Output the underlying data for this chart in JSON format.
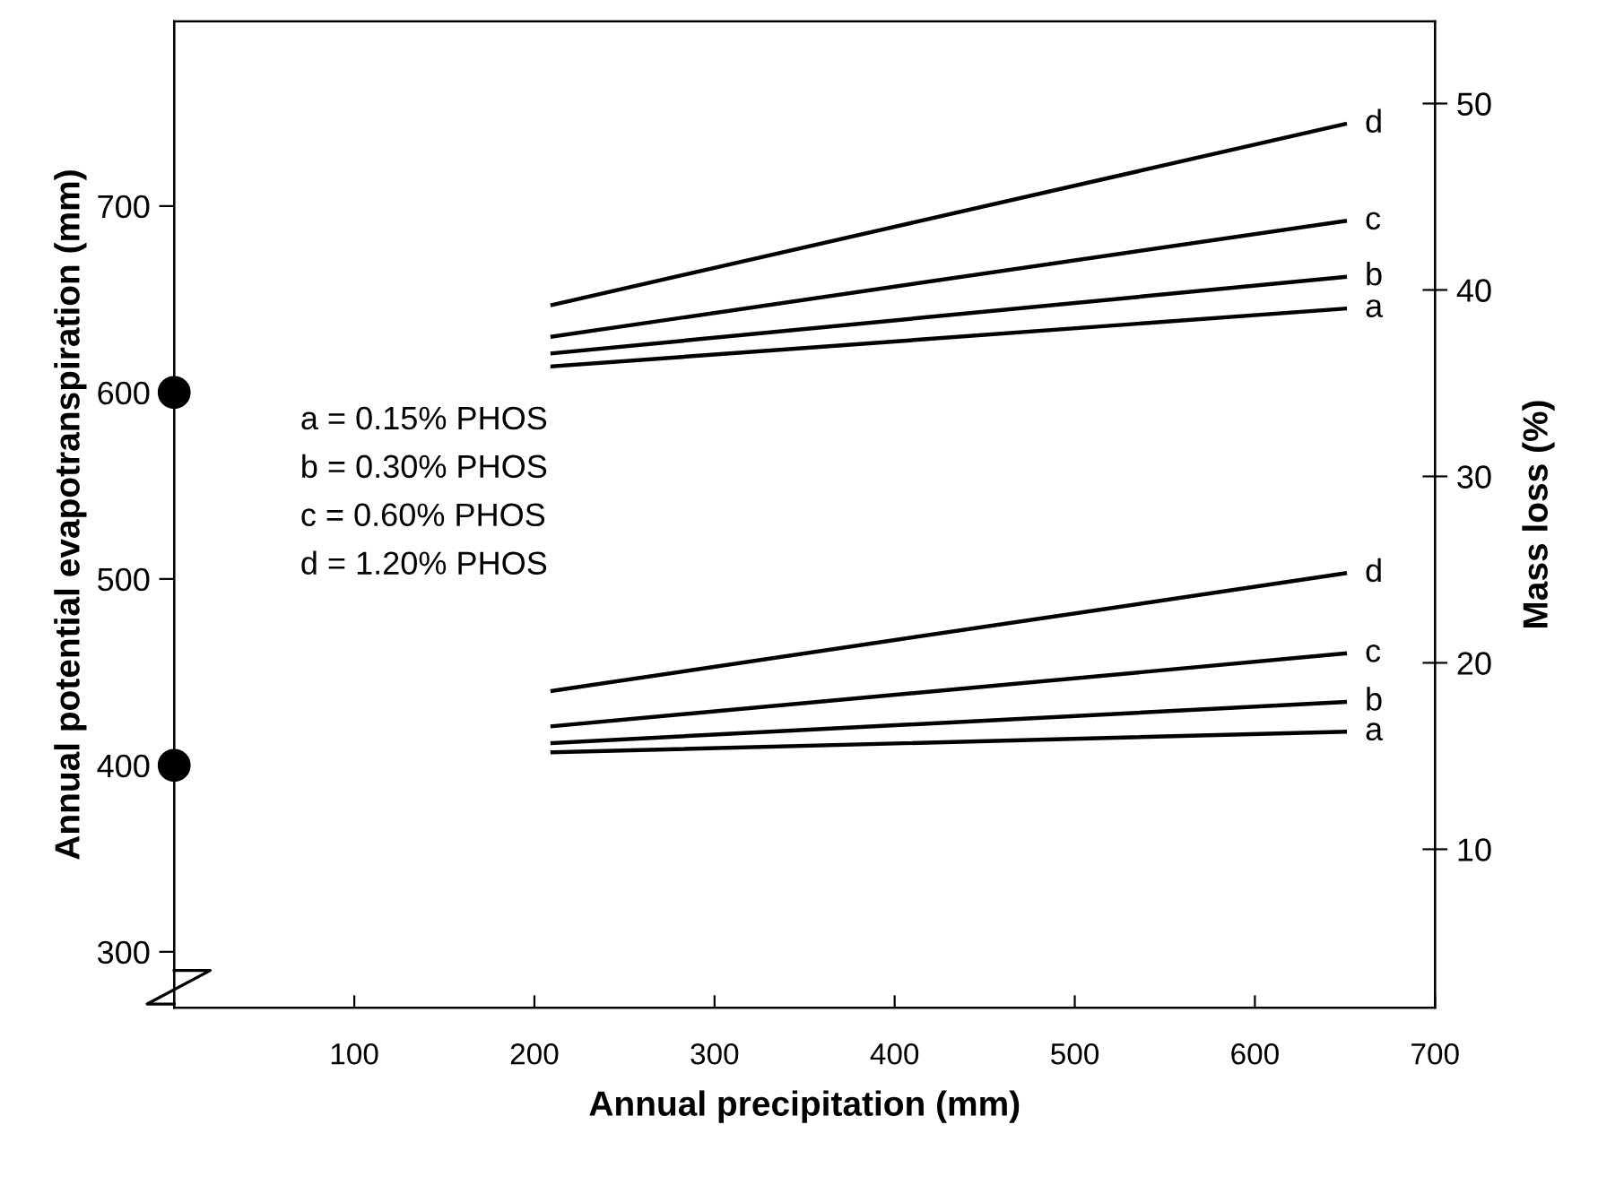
{
  "chart_data": {
    "type": "line",
    "xlabel": "Annual precipitation (mm)",
    "ylabel": "Annual potential evapotranspiration (mm)",
    "y2label": "Mass loss (%)",
    "xlim": [
      0,
      700
    ],
    "xticks": [
      100,
      200,
      300,
      400,
      500,
      600,
      700
    ],
    "ylim": [
      270,
      799
    ],
    "yticks": [
      300,
      400,
      500,
      600,
      700
    ],
    "y2lim": [
      1.5,
      54.4
    ],
    "y2ticks": [
      10,
      20,
      30,
      40,
      50
    ],
    "annotations": [
      "a = 0.15% PHOS",
      "b = 0.30% PHOS",
      "c = 0.60% PHOS",
      "d = 1.20% PHOS"
    ],
    "grid": false,
    "legend": false,
    "line_style": "solid",
    "series": [
      {
        "type": "scatter",
        "marker": "circle",
        "color": "#000000",
        "x": [
          0,
          0
        ],
        "values": [
          600,
          400
        ]
      },
      {
        "name": "a",
        "axis": "y2",
        "color": "#000000",
        "x": [
          210,
          650
        ],
        "values": [
          35.9,
          39.0
        ]
      },
      {
        "name": "b",
        "axis": "y2",
        "color": "#000000",
        "x": [
          210,
          650
        ],
        "values": [
          36.6,
          40.7
        ]
      },
      {
        "name": "c",
        "axis": "y2",
        "color": "#000000",
        "x": [
          210,
          650
        ],
        "values": [
          37.5,
          43.7
        ]
      },
      {
        "name": "d",
        "axis": "y2",
        "color": "#000000",
        "x": [
          210,
          650
        ],
        "values": [
          39.2,
          48.9
        ]
      },
      {
        "name": "a",
        "axis": "y2",
        "color": "#000000",
        "x": [
          210,
          650
        ],
        "values": [
          15.2,
          16.3
        ]
      },
      {
        "name": "b",
        "axis": "y2",
        "color": "#000000",
        "x": [
          210,
          650
        ],
        "values": [
          15.7,
          17.9
        ]
      },
      {
        "name": "c",
        "axis": "y2",
        "color": "#000000",
        "x": [
          210,
          650
        ],
        "values": [
          16.6,
          20.5
        ]
      },
      {
        "name": "d",
        "axis": "y2",
        "color": "#000000",
        "x": [
          210,
          650
        ],
        "values": [
          18.5,
          24.8
        ]
      }
    ]
  }
}
